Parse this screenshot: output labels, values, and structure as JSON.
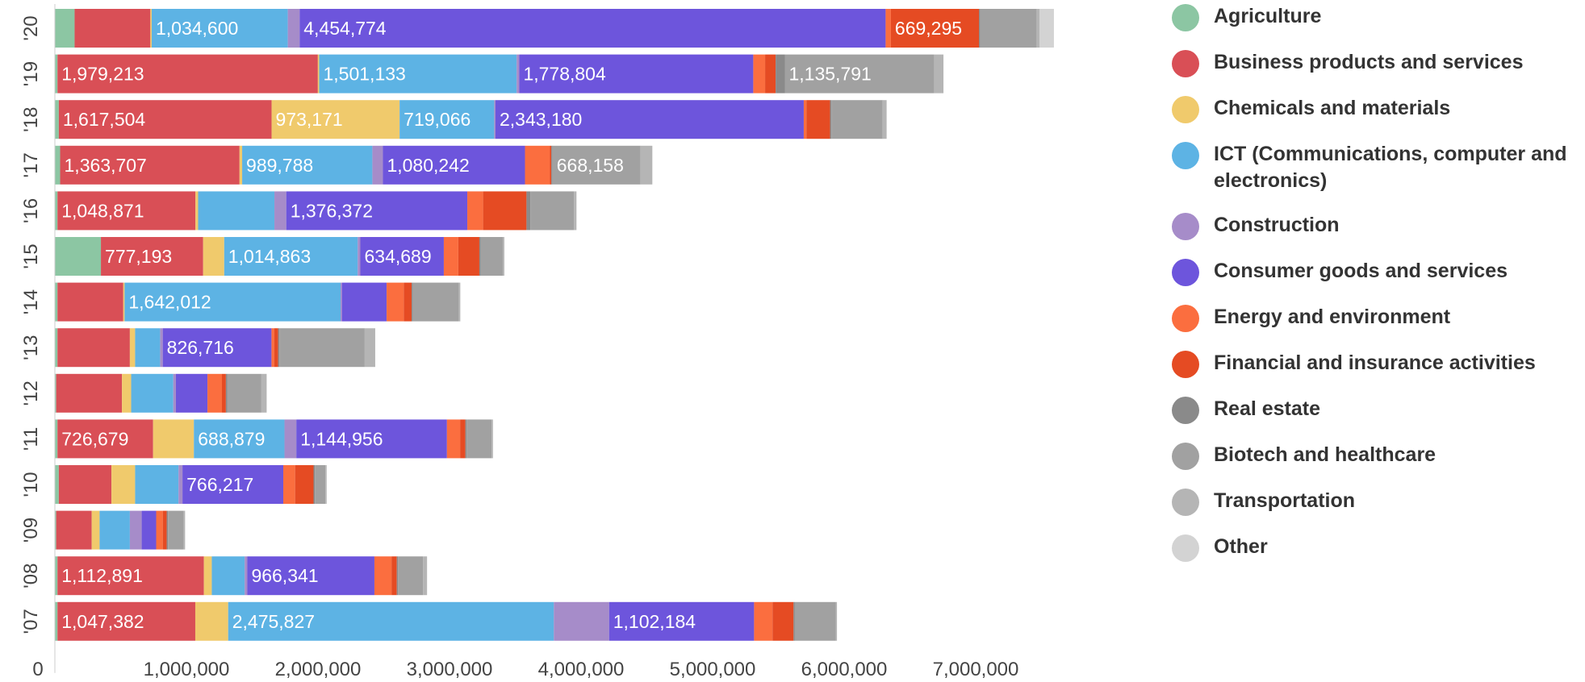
{
  "chart_data": {
    "type": "bar",
    "orientation": "horizontal",
    "stacked": true,
    "title": "",
    "xlabel": "",
    "ylabel": "",
    "xlim": [
      0,
      7800000
    ],
    "x_ticks": [
      {
        "value": 0,
        "label": "0"
      },
      {
        "value": 1000000,
        "label": "1,000,000"
      },
      {
        "value": 2000000,
        "label": "2,000,000"
      },
      {
        "value": 3000000,
        "label": "3,000,000"
      },
      {
        "value": 4000000,
        "label": "4,000,000"
      },
      {
        "value": 5000000,
        "label": "5,000,000"
      },
      {
        "value": 6000000,
        "label": "6,000,000"
      },
      {
        "value": 7000000,
        "label": "7,000,000"
      }
    ],
    "grid": false,
    "legend_position": "right",
    "categories": [
      "'20",
      "'19",
      "'18",
      "'17",
      "'16",
      "'15",
      "'14",
      "'13",
      "'12",
      "'11",
      "'10",
      "'09",
      "'08",
      "'07"
    ],
    "series": [
      {
        "name": "Agriculture",
        "color": "#8cc6a3",
        "values": [
          150000,
          20000,
          30000,
          40000,
          20000,
          350000,
          20000,
          20000,
          10000,
          20000,
          30000,
          10000,
          20000,
          20000
        ],
        "labels": [
          "",
          "",
          "",
          "",
          "",
          "",
          "",
          "",
          "",
          "",
          "",
          "",
          "",
          ""
        ]
      },
      {
        "name": "Business products and services",
        "color": "#d94f56",
        "values": [
          576000,
          1979213,
          1617504,
          1363707,
          1048871,
          777193,
          500000,
          550000,
          500000,
          726679,
          400000,
          270000,
          1112891,
          1047382
        ],
        "labels": [
          "",
          "1,979,213",
          "1,617,504",
          "1,363,707",
          "1,048,871",
          "777,193",
          "",
          "",
          "",
          "726,679",
          "",
          "",
          "1,112,891",
          "1,047,382"
        ]
      },
      {
        "name": "Chemicals and materials",
        "color": "#f0ca6c",
        "values": [
          10000,
          10000,
          973171,
          20000,
          20000,
          160000,
          10000,
          40000,
          70000,
          310000,
          180000,
          60000,
          60000,
          250000
        ],
        "labels": [
          "",
          "",
          "973,171",
          "",
          "",
          "",
          "",
          "",
          "",
          "",
          "",
          "",
          "",
          ""
        ]
      },
      {
        "name": "ICT (Communications, computer and electronics)",
        "color": "#5db3e4",
        "values": [
          1034600,
          1501133,
          719066,
          989788,
          580000,
          1014863,
          1642012,
          190000,
          320000,
          688879,
          330000,
          230000,
          250000,
          2475827
        ],
        "labels": [
          "1,034,600",
          "1,501,133",
          "719,066",
          "989,788",
          "",
          "1,014,863",
          "1,642,012",
          "",
          "",
          "688,879",
          "",
          "",
          "",
          "2,475,827"
        ]
      },
      {
        "name": "Construction",
        "color": "#a68cc9",
        "values": [
          90000,
          20000,
          10000,
          80000,
          90000,
          20000,
          10000,
          20000,
          20000,
          90000,
          30000,
          90000,
          20000,
          420000
        ],
        "labels": [
          "",
          "",
          "",
          "",
          "",
          "",
          "",
          "",
          "",
          "",
          "",
          "",
          "",
          ""
        ]
      },
      {
        "name": "Consumer goods and services",
        "color": "#6d55dc",
        "values": [
          4454774,
          1778804,
          2343180,
          1080242,
          1376372,
          634689,
          340000,
          826716,
          240000,
          1144956,
          766217,
          110000,
          966341,
          1102184
        ],
        "labels": [
          "4,454,774",
          "1,778,804",
          "2,343,180",
          "1,080,242",
          "1,376,372",
          "634,689",
          "",
          "826,716",
          "",
          "1,144,956",
          "766,217",
          "",
          "966,341",
          "1,102,184"
        ]
      },
      {
        "name": "Energy and environment",
        "color": "#fb6e3f",
        "values": [
          40000,
          90000,
          20000,
          190000,
          120000,
          110000,
          130000,
          20000,
          110000,
          100000,
          90000,
          50000,
          130000,
          140000
        ],
        "labels": [
          "",
          "",
          "",
          "",
          "",
          "",
          "",
          "",
          "",
          "",
          "",
          "",
          "",
          ""
        ]
      },
      {
        "name": "Financial and insurance activities",
        "color": "#e54b23",
        "values": [
          669295,
          80000,
          180000,
          10000,
          330000,
          160000,
          60000,
          30000,
          30000,
          40000,
          140000,
          30000,
          40000,
          160000
        ],
        "labels": [
          "669,295",
          "",
          "",
          "",
          "",
          "",
          "",
          "",
          "",
          "",
          "",
          "",
          "",
          ""
        ]
      },
      {
        "name": "Real estate",
        "color": "#8a8a8a",
        "values": [
          10000,
          70000,
          10000,
          10000,
          30000,
          10000,
          10000,
          10000,
          10000,
          10000,
          10000,
          10000,
          10000,
          10000
        ],
        "labels": [
          "",
          "",
          "",
          "",
          "",
          "",
          "",
          "",
          "",
          "",
          "",
          "",
          "",
          ""
        ]
      },
      {
        "name": "Biotech and healthcare",
        "color": "#a1a1a1",
        "values": [
          430000,
          1135791,
          390000,
          668158,
          330000,
          170000,
          350000,
          648532,
          260000,
          190000,
          80000,
          120000,
          190000,
          310000
        ],
        "labels": [
          "",
          "1,135,791",
          "",
          "668,158",
          "",
          "",
          "",
          "",
          "",
          "",
          "",
          "",
          "",
          ""
        ]
      },
      {
        "name": "Transportation",
        "color": "#b5b5b5",
        "values": [
          20000,
          70000,
          30000,
          90000,
          20000,
          10000,
          10000,
          80000,
          40000,
          10000,
          10000,
          10000,
          30000,
          10000
        ],
        "labels": [
          "",
          "",
          "",
          "",
          "",
          "",
          "",
          "",
          "",
          "",
          "",
          "",
          "",
          ""
        ]
      },
      {
        "name": "Other",
        "color": "#d3d3d3",
        "values": [
          110000,
          0,
          0,
          0,
          0,
          0,
          0,
          0,
          0,
          0,
          0,
          0,
          0,
          0
        ],
        "labels": [
          "",
          "",
          "",
          "",
          "",
          "",
          "",
          "",
          "",
          "",
          "",
          "",
          "",
          ""
        ]
      }
    ]
  }
}
